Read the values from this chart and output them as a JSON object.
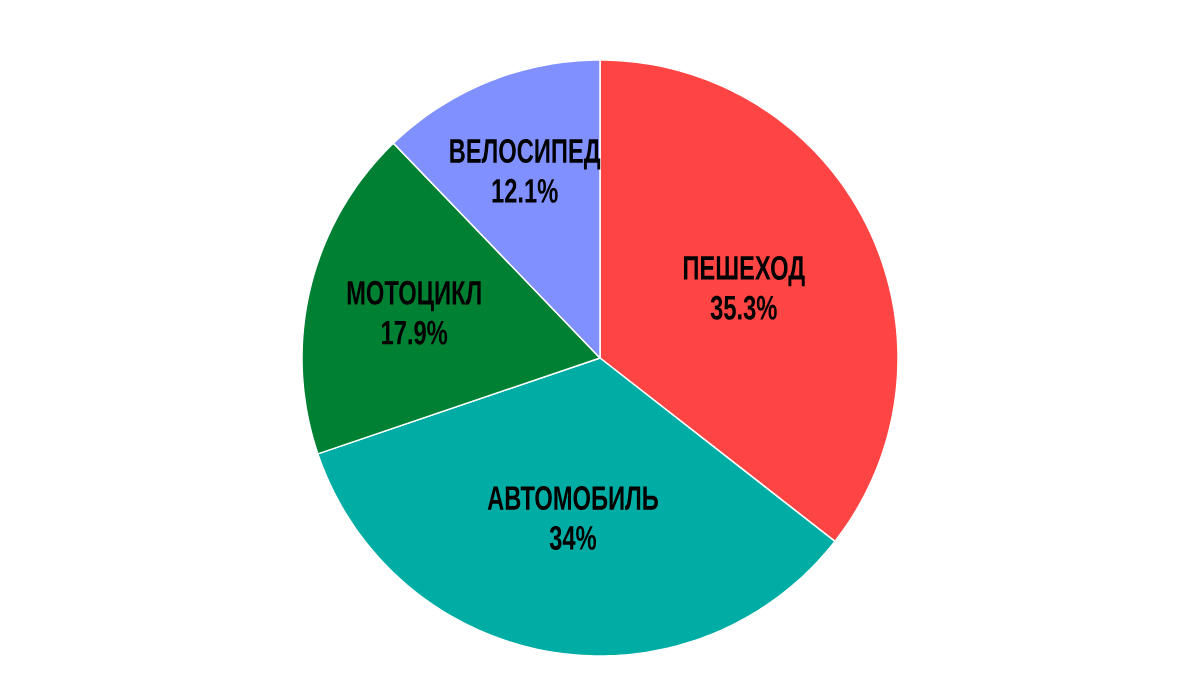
{
  "chart_data": {
    "type": "pie",
    "categories": [
      "ПЕШЕХОД",
      "АВТОМОБИЛЬ",
      "МОТОЦИКЛ",
      "ВЕЛОСИПЕД"
    ],
    "values": [
      35.3,
      34,
      17.9,
      12.1
    ],
    "colors": [
      "#ff4444",
      "#00ada4",
      "#008033",
      "#8090ff"
    ],
    "value_labels": [
      "35.3%",
      "34%",
      "17.9%",
      "12.1%"
    ]
  }
}
